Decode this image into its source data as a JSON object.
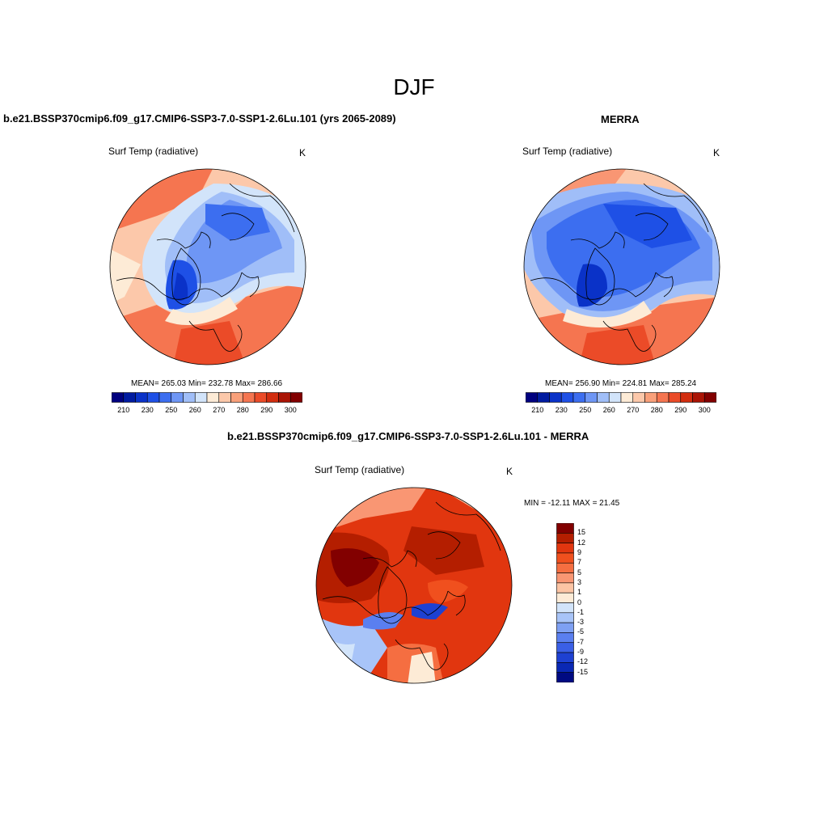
{
  "main_title": "DJF",
  "panels": [
    {
      "title": "b.e21.BSSP370cmip6.f09_g17.CMIP6-SSP3-7.0-SSP1-2.6Lu.101 (yrs 2065-2089)",
      "variable": "Surf Temp (radiative)",
      "units": "K",
      "stats": "MEAN= 265.03  Min= 232.78  Max= 286.66"
    },
    {
      "title": "MERRA",
      "variable": "Surf Temp (radiative)",
      "units": "K",
      "stats": "MEAN= 256.90  Min= 224.81  Max= 285.24"
    },
    {
      "title": "b.e21.BSSP370cmip6.f09_g17.CMIP6-SSP3-7.0-SSP1-2.6Lu.101 - MERRA",
      "variable": "Surf Temp (radiative)",
      "units": "K",
      "stats": "MIN = -12.11 MAX =  21.45"
    }
  ],
  "abs_colorbar": {
    "colors": [
      "#00007f",
      "#001ba0",
      "#0a32c8",
      "#1e50e6",
      "#3c6ef0",
      "#6e96f5",
      "#a0bef8",
      "#d2e4fa",
      "#fdebd6",
      "#fcc8aa",
      "#f9a07a",
      "#f57550",
      "#eb4b28",
      "#d22d0f",
      "#aa1405",
      "#820000"
    ],
    "tick_labels": [
      "210",
      "230",
      "250",
      "260",
      "270",
      "280",
      "290",
      "300"
    ]
  },
  "diff_colorbar": {
    "colors": [
      "#820000",
      "#b41e00",
      "#e1360f",
      "#f0501e",
      "#f56e41",
      "#f99673",
      "#fcc4a4",
      "#fdebd6",
      "#d2e4fa",
      "#a8c4f8",
      "#7ea0f3",
      "#5a7ff0",
      "#3a5fe6",
      "#1e41d2",
      "#0a28b4",
      "#000a82"
    ],
    "labels": [
      "15",
      "12",
      "9",
      "7",
      "5",
      "3",
      "1",
      "0",
      "-1",
      "-3",
      "-5",
      "-7",
      "-9",
      "-12",
      "-15"
    ]
  }
}
